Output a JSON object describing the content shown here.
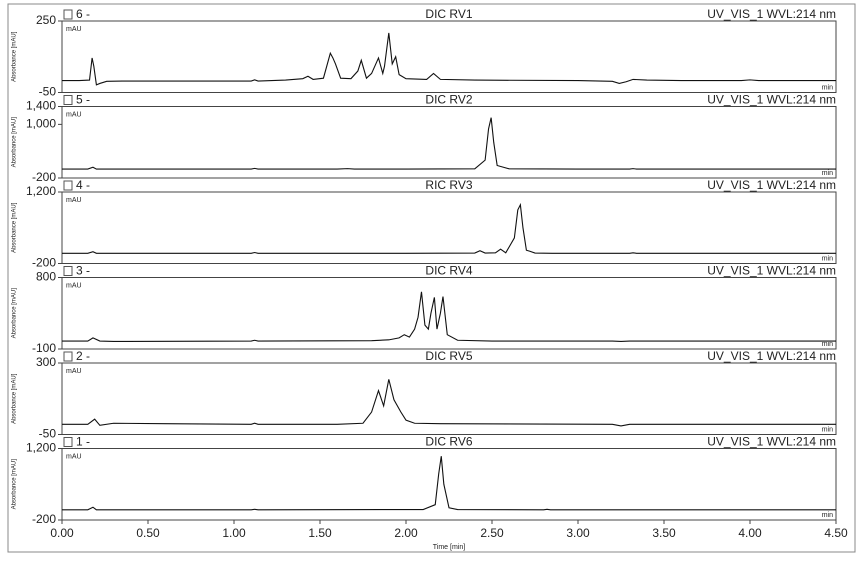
{
  "chart_data": [
    {
      "type": "line",
      "label": "6 -",
      "title": "DIC RV1",
      "detector": "UV_VIS_1 WVL:214 nm",
      "y_label": "Absorbance [mAU]",
      "units": "mAU",
      "x_unit": "min",
      "color": "#111111",
      "ylim": [
        -50,
        250
      ],
      "yticks": [
        -50,
        250
      ],
      "xlim": [
        0,
        4.5
      ],
      "x": [
        0,
        0.1,
        0.16,
        0.175,
        0.185,
        0.2,
        0.22,
        0.26,
        0.35,
        0.6,
        1.1,
        1.12,
        1.14,
        1.3,
        1.4,
        1.43,
        1.46,
        1.52,
        1.56,
        1.575,
        1.59,
        1.62,
        1.68,
        1.72,
        1.74,
        1.77,
        1.8,
        1.84,
        1.865,
        1.875,
        1.9,
        1.92,
        1.94,
        1.96,
        2.0,
        2.12,
        2.16,
        2.2,
        2.4,
        3.0,
        3.2,
        3.24,
        3.28,
        3.32,
        3.4,
        3.6,
        3.95,
        4.0,
        4.05,
        4.5
      ],
      "values": [
        0,
        0,
        2,
        95,
        60,
        -18,
        -12,
        -3,
        -2,
        -2,
        -2,
        3,
        -2,
        2,
        8,
        18,
        5,
        10,
        115,
        95,
        70,
        10,
        8,
        40,
        85,
        10,
        30,
        95,
        30,
        60,
        200,
        70,
        100,
        25,
        8,
        5,
        30,
        5,
        2,
        0,
        -3,
        -12,
        -5,
        5,
        2,
        0,
        0,
        3,
        0,
        0
      ]
    },
    {
      "type": "line",
      "label": "5 -",
      "title": "DIC RV2",
      "detector": "UV_VIS_1 WVL:214 nm",
      "y_label": "Absorbance [mAU]",
      "units": "mAU",
      "x_unit": "min",
      "color": "#111111",
      "ylim": [
        -200,
        1400
      ],
      "yticks": [
        -200,
        {
          "value": 1000,
          "label": "1,000"
        },
        {
          "value": 1400,
          "label": "1,400"
        }
      ],
      "xlim": [
        0,
        4.5
      ],
      "x": [
        0,
        0.15,
        0.18,
        0.2,
        0.25,
        1.1,
        1.12,
        1.14,
        1.6,
        1.66,
        1.7,
        2.0,
        2.4,
        2.46,
        2.48,
        2.495,
        2.51,
        2.53,
        2.6,
        3.0,
        3.3,
        3.32,
        3.34,
        4.5
      ],
      "values": [
        0,
        0,
        40,
        0,
        0,
        0,
        15,
        0,
        0,
        10,
        0,
        0,
        5,
        200,
        900,
        1150,
        600,
        80,
        5,
        0,
        0,
        10,
        0,
        0
      ]
    },
    {
      "type": "line",
      "label": "4 -",
      "title": "RIC RV3",
      "detector": "UV_VIS_1 WVL:214 nm",
      "y_label": "Absorbance [mAU]",
      "units": "mAU",
      "x_unit": "min",
      "color": "#111111",
      "ylim": [
        -200,
        1200
      ],
      "yticks": [
        -200,
        {
          "value": 1200,
          "label": "1,200"
        }
      ],
      "xlim": [
        0,
        4.5
      ],
      "x": [
        0,
        0.15,
        0.18,
        0.2,
        1.1,
        1.12,
        1.14,
        2.0,
        2.4,
        2.43,
        2.46,
        2.52,
        2.55,
        2.58,
        2.63,
        2.65,
        2.665,
        2.68,
        2.7,
        2.72,
        2.75,
        2.85,
        3.3,
        3.32,
        3.34,
        4.5
      ],
      "values": [
        0,
        0,
        30,
        0,
        0,
        15,
        0,
        0,
        5,
        50,
        5,
        10,
        80,
        10,
        300,
        850,
        950,
        500,
        60,
        40,
        5,
        0,
        0,
        10,
        0,
        0
      ]
    },
    {
      "type": "line",
      "label": "3 -",
      "title": "DIC RV4",
      "detector": "UV_VIS_1 WVL:214 nm",
      "y_label": "Absorbance [mAU]",
      "units": "mAU",
      "x_unit": "min",
      "color": "#111111",
      "ylim": [
        -100,
        800
      ],
      "yticks": [
        -100,
        800
      ],
      "xlim": [
        0,
        4.5
      ],
      "x": [
        0,
        0.15,
        0.18,
        0.22,
        0.3,
        1.1,
        1.12,
        1.14,
        1.8,
        1.9,
        1.96,
        1.99,
        2.02,
        2.05,
        2.07,
        2.09,
        2.11,
        2.13,
        2.145,
        2.165,
        2.18,
        2.2,
        2.215,
        2.24,
        2.3,
        2.5,
        3.2,
        3.25,
        3.3,
        4.5
      ],
      "values": [
        0,
        0,
        40,
        0,
        -5,
        0,
        10,
        0,
        5,
        15,
        40,
        80,
        50,
        150,
        300,
        620,
        200,
        150,
        350,
        550,
        150,
        350,
        560,
        80,
        10,
        0,
        0,
        -5,
        0,
        0
      ]
    },
    {
      "type": "line",
      "label": "2 -",
      "title": "DIC RV5",
      "detector": "UV_VIS_1 WVL:214 nm",
      "y_label": "Absorbance [mAU]",
      "units": "mAU",
      "x_unit": "min",
      "color": "#111111",
      "ylim": [
        -50,
        300
      ],
      "yticks": [
        -50,
        300
      ],
      "xlim": [
        0,
        4.5
      ],
      "x": [
        0,
        0.15,
        0.19,
        0.22,
        0.3,
        0.6,
        1.1,
        1.12,
        1.14,
        1.6,
        1.75,
        1.8,
        1.84,
        1.87,
        1.9,
        1.93,
        1.97,
        2.0,
        2.05,
        2.2,
        3.2,
        3.25,
        3.3,
        4.5
      ],
      "values": [
        0,
        0,
        25,
        -5,
        5,
        3,
        0,
        5,
        0,
        0,
        5,
        60,
        165,
        90,
        220,
        120,
        60,
        20,
        5,
        3,
        0,
        -8,
        0,
        0
      ]
    },
    {
      "type": "line",
      "label": "1 -",
      "title": "DIC RV6",
      "detector": "UV_VIS_1 WVL:214 nm",
      "y_label": "Absorbance [mAU]",
      "units": "mAU",
      "x_unit": "min",
      "color": "#111111",
      "ylim": [
        -200,
        1200
      ],
      "yticks": [
        -200,
        {
          "value": 1200,
          "label": "1,200"
        }
      ],
      "xlim": [
        0,
        4.5
      ],
      "xticks": [
        {
          "value": 0,
          "label": "0.00"
        },
        {
          "value": 0.5,
          "label": "0.50"
        },
        {
          "value": 1,
          "label": "1.00"
        },
        {
          "value": 1.5,
          "label": "1.50"
        },
        {
          "value": 2,
          "label": "2.00"
        },
        {
          "value": 2.5,
          "label": "2.50"
        },
        {
          "value": 3,
          "label": "3.00"
        },
        {
          "value": 3.5,
          "label": "3.50"
        },
        {
          "value": 4,
          "label": "4.00"
        },
        {
          "value": 4.5,
          "label": "4.50"
        }
      ],
      "x_label": "Time [min]",
      "x": [
        0,
        0.15,
        0.18,
        0.2,
        1.1,
        1.12,
        1.14,
        2.1,
        2.17,
        2.19,
        2.205,
        2.22,
        2.25,
        2.3,
        2.8,
        2.82,
        2.84,
        4.5
      ],
      "values": [
        0,
        0,
        50,
        0,
        0,
        10,
        0,
        5,
        100,
        700,
        1050,
        500,
        40,
        5,
        0,
        10,
        0,
        0
      ]
    }
  ]
}
